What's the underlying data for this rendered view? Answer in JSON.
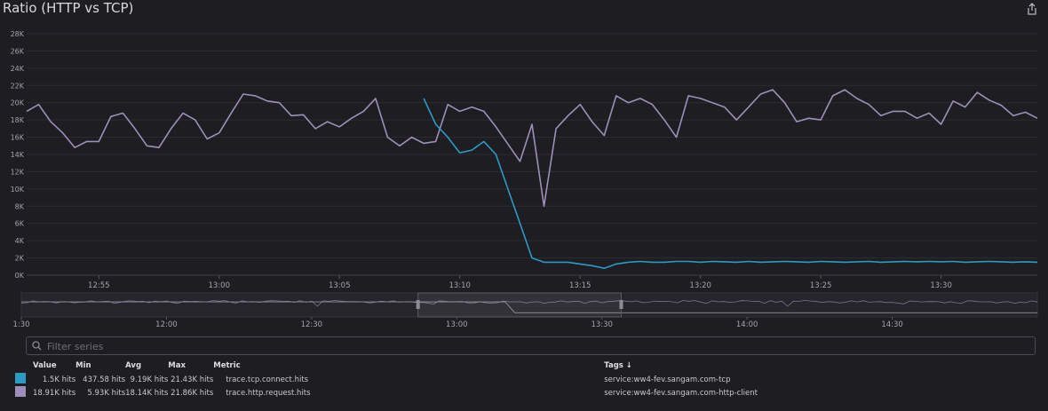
{
  "widget": {
    "title": "Ratio (HTTP vs TCP)",
    "icons": [
      "share-icon",
      "search-icon"
    ],
    "filter_placeholder": "Filter series"
  },
  "legend": {
    "headers": {
      "value": "Value",
      "min": "Min",
      "avg": "Avg",
      "max": "Max",
      "metric": "Metric",
      "tags": "Tags ↓"
    },
    "rows": [
      {
        "color": "#2a9bc4",
        "value": "1.5K hits",
        "min": "437.58 hits",
        "avg": "9.19K hits",
        "max": "21.43K hits",
        "metric": "trace.tcp.connect.hits",
        "tags": "service:ww4-fev.sangam.com-tcp"
      },
      {
        "color": "#9c90b8",
        "value": "18.91K hits",
        "min": "5.93K hits",
        "avg": "18.14K hits",
        "max": "21.86K hits",
        "metric": "trace.http.request.hits",
        "tags": "service:ww4-fev.sangam.com-http-client"
      }
    ]
  },
  "chart_data": {
    "type": "line",
    "title": "Ratio (HTTP vs TCP)",
    "xlabel": "",
    "ylabel": "",
    "x_range": [
      "12:52",
      "13:34"
    ],
    "ylim": [
      0,
      28000
    ],
    "y_ticks": [
      "0K",
      "2K",
      "4K",
      "6K",
      "8K",
      "10K",
      "12K",
      "14K",
      "16K",
      "18K",
      "20K",
      "22K",
      "24K",
      "26K",
      "28K"
    ],
    "y_tick_values": [
      0,
      2000,
      4000,
      6000,
      8000,
      10000,
      12000,
      14000,
      16000,
      18000,
      20000,
      22000,
      24000,
      26000,
      28000
    ],
    "x_ticks": [
      "12:55",
      "13:00",
      "13:05",
      "13:10",
      "13:15",
      "13:20",
      "13:25",
      "13:30"
    ],
    "x_tick_minutes": [
      55,
      60,
      65,
      70,
      75,
      80,
      85,
      90
    ],
    "grid": true,
    "series": [
      {
        "name": "trace.http.request.hits",
        "color": "#9c90b8",
        "x": [
          52.0,
          52.5,
          53.0,
          53.5,
          54.0,
          54.5,
          55.0,
          55.5,
          56.0,
          56.5,
          57.0,
          57.5,
          58.0,
          58.5,
          59.0,
          59.5,
          60.0,
          60.5,
          61.0,
          61.5,
          62.0,
          62.5,
          63.0,
          63.5,
          64.0,
          64.5,
          65.0,
          65.5,
          66.0,
          66.5,
          67.0,
          67.5,
          68.0,
          68.5,
          69.0,
          69.5,
          70.0,
          70.5,
          71.0,
          71.5,
          72.0,
          72.5,
          73.0,
          73.5,
          74.0,
          74.5,
          75.0,
          75.5,
          76.0,
          76.5,
          77.0,
          77.5,
          78.0,
          78.5,
          79.0,
          79.5,
          80.0,
          80.5,
          81.0,
          81.5,
          82.0,
          82.5,
          83.0,
          83.5,
          84.0,
          84.5,
          85.0,
          85.5,
          86.0,
          86.5,
          87.0,
          87.5,
          88.0,
          88.5,
          89.0,
          89.5,
          90.0,
          90.5,
          91.0,
          91.5,
          92.0,
          92.5,
          93.0,
          93.5,
          94.0
        ],
        "values": [
          19000,
          19800,
          17800,
          16500,
          14800,
          15500,
          15500,
          18400,
          18800,
          17000,
          15000,
          14800,
          17000,
          18800,
          18000,
          15800,
          16500,
          18800,
          21000,
          20800,
          20200,
          20000,
          18500,
          18600,
          17000,
          17800,
          17200,
          18200,
          19000,
          20500,
          16000,
          15000,
          16000,
          15300,
          15500,
          19800,
          19000,
          19500,
          19000,
          17200,
          15200,
          13200,
          17500,
          8000,
          17000,
          18500,
          19800,
          17800,
          16200,
          20800,
          20000,
          20500,
          19800,
          18000,
          16000,
          20800,
          20500,
          20000,
          19500,
          18000,
          19500,
          21000,
          21500,
          20000,
          17800,
          18200,
          18000,
          20800,
          21500,
          20500,
          19800,
          18500,
          19000,
          19000,
          18200,
          18800,
          17500,
          20200,
          19500,
          21200,
          20300,
          19700,
          18500,
          18900,
          18200
        ],
        "overview": "full 10:30–15:00 range downsampled"
      },
      {
        "name": "trace.tcp.connect.hits",
        "color": "#2a9bc4",
        "x": [
          68.5,
          69.0,
          69.5,
          70.0,
          70.5,
          71.0,
          71.5,
          72.0,
          72.5,
          73.0,
          73.5,
          74.0,
          74.5,
          75.0,
          75.5,
          76.0,
          76.5,
          77.0,
          77.5,
          78.0,
          78.5,
          79.0,
          79.5,
          80.0,
          80.5,
          81.0,
          81.5,
          82.0,
          82.5,
          83.0,
          83.5,
          84.0,
          84.5,
          85.0,
          85.5,
          86.0,
          86.5,
          87.0,
          87.5,
          88.0,
          88.5,
          89.0,
          89.5,
          90.0,
          90.5,
          91.0,
          91.5,
          92.0,
          92.5,
          93.0,
          93.5,
          94.0
        ],
        "values": [
          20500,
          17500,
          16000,
          14200,
          14500,
          15500,
          14000,
          10000,
          6000,
          2000,
          1500,
          1500,
          1500,
          1300,
          1100,
          800,
          1300,
          1500,
          1600,
          1500,
          1500,
          1600,
          1600,
          1500,
          1600,
          1550,
          1500,
          1600,
          1500,
          1550,
          1600,
          1550,
          1500,
          1600,
          1550,
          1500,
          1550,
          1600,
          1500,
          1550,
          1600,
          1550,
          1600,
          1550,
          1600,
          1500,
          1550,
          1600,
          1550,
          1500,
          1550,
          1500
        ]
      }
    ],
    "overview": {
      "x_ticks": [
        "1:30",
        "12:00",
        "12:30",
        "13:00",
        "13:30",
        "14:00",
        "14:30"
      ],
      "selected_range": [
        "12:52",
        "13:34"
      ]
    }
  }
}
